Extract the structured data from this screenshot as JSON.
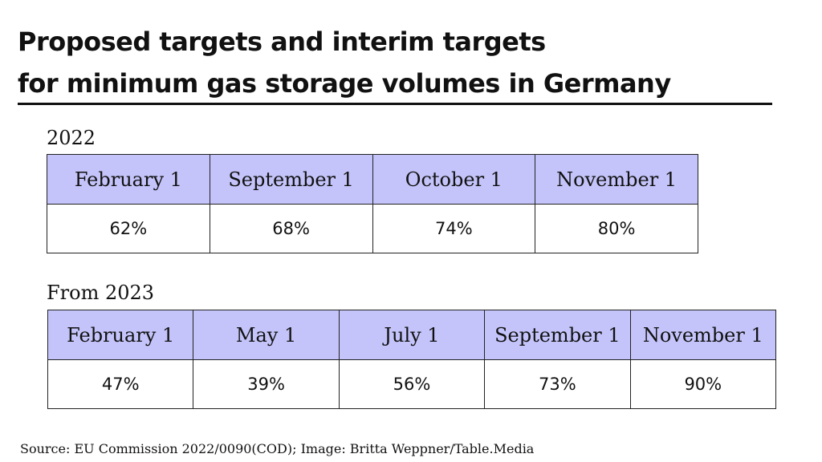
{
  "title_line1": "Proposed targets and interim targets",
  "title_line2": "for minimum gas storage volumes in Germany",
  "chart_data": [
    {
      "type": "table",
      "title": "2022",
      "columns": [
        "February 1",
        "September 1",
        "October 1",
        "November 1"
      ],
      "values": [
        "62%",
        "68%",
        "74%",
        "80%"
      ]
    },
    {
      "type": "table",
      "title": "From 2023",
      "columns": [
        "February 1",
        "May 1",
        "July 1",
        "September 1",
        "November 1"
      ],
      "values": [
        "47%",
        "39%",
        "56%",
        "73%",
        "90%"
      ]
    }
  ],
  "source": "Source: EU Commission 2022/0090(COD); Image: Britta Weppner/Table.Media",
  "colors": {
    "header_fill": "#c4c4fb",
    "border": "#222222",
    "text": "#111111"
  }
}
